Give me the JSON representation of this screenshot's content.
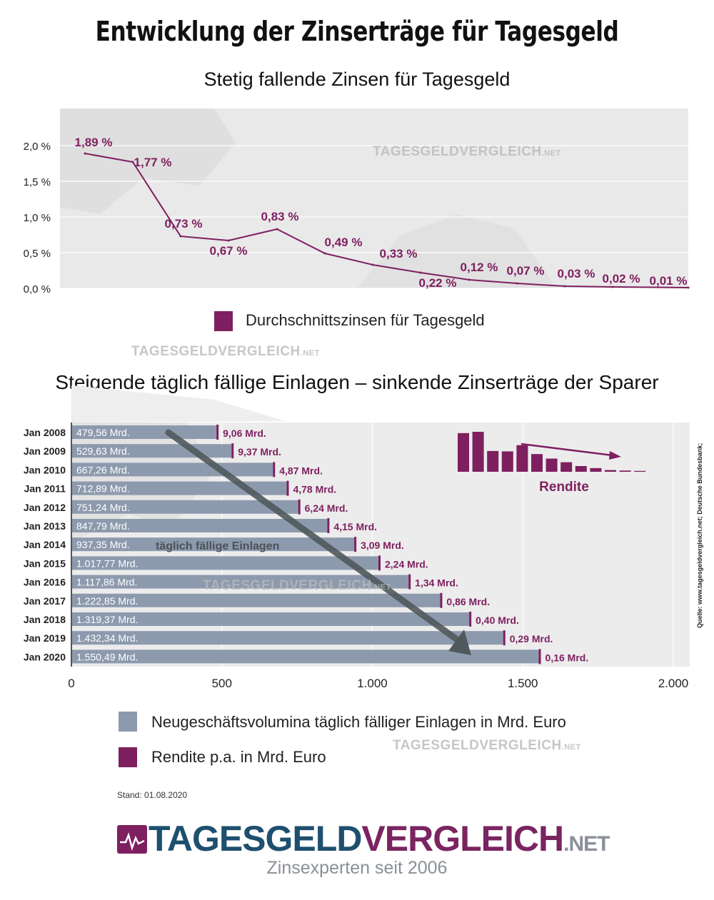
{
  "header": {
    "title": "Entwicklung der Zinserträge für Tagesgeld"
  },
  "chart_data": [
    {
      "type": "line",
      "title": "Stetig fallende Zinsen für Tagesgeld",
      "xlabel": "",
      "ylabel": "",
      "ylim": [
        0,
        2.4
      ],
      "yticks": [
        "0,0 %",
        "0,5 %",
        "1,0 %",
        "1,5 %",
        "2,0 %"
      ],
      "ytick_values": [
        0,
        0.5,
        1.0,
        1.5,
        2.0
      ],
      "grid": true,
      "legend_position": "bottom",
      "series": [
        {
          "name": "Durchschnittszinsen für Tagesgeld",
          "color": "#7e1f5f",
          "values": [
            1.89,
            1.77,
            0.73,
            0.67,
            0.83,
            0.49,
            0.33,
            0.22,
            0.12,
            0.07,
            0.03,
            0.02,
            0.01
          ],
          "labels": [
            "1,89 %",
            "1,77 %",
            "0,73 %",
            "0,67 %",
            "0,83 %",
            "0,49 %",
            "0,33 %",
            "0,22 %",
            "0,12 %",
            "0,07 %",
            "0,03 %",
            "0,02 %",
            "0,01 %"
          ]
        }
      ]
    },
    {
      "type": "bar",
      "orientation": "horizontal",
      "title": "Steigende täglich fällige Einlagen – sinkende Zinserträge der Sparer",
      "xlabel": "",
      "ylabel": "",
      "xlim": [
        0,
        2000
      ],
      "xticks": [
        "0",
        "500",
        "1.000",
        "1.500",
        "2.000"
      ],
      "xtick_values": [
        0,
        500,
        1000,
        1500,
        2000
      ],
      "grid": true,
      "legend_position": "bottom",
      "annotation": "täglich fällige Einlagen",
      "inset_label": "Rendite",
      "categories": [
        "Jan 2008",
        "Jan 2009",
        "Jan 2010",
        "Jan 2011",
        "Jan 2012",
        "Jan 2013",
        "Jan 2014",
        "Jan 2015",
        "Jan 2016",
        "Jan 2017",
        "Jan 2018",
        "Jan 2019",
        "Jan 2020"
      ],
      "series": [
        {
          "name": "Neugeschäftsvolumina täglich fälliger Einlagen in Mrd. Euro",
          "color": "#8d9aae",
          "values": [
            479.56,
            529.63,
            667.26,
            712.89,
            751.24,
            847.79,
            937.35,
            1017.77,
            1117.86,
            1222.85,
            1319.37,
            1432.34,
            1550.49
          ],
          "labels": [
            "479,56 Mrd.",
            "529,63 Mrd.",
            "667,26 Mrd.",
            "712,89 Mrd.",
            "751,24 Mrd.",
            "847,79 Mrd.",
            "937,35 Mrd.",
            "1.017,77 Mrd.",
            "1.117,86 Mrd.",
            "1.222,85 Mrd.",
            "1.319,37 Mrd.",
            "1.432,34 Mrd.",
            "1.550,49 Mrd."
          ]
        },
        {
          "name": "Rendite p.a. in Mrd. Euro",
          "color": "#7e1f5f",
          "values": [
            9.06,
            9.37,
            4.87,
            4.78,
            6.24,
            4.15,
            3.09,
            2.24,
            1.34,
            0.86,
            0.4,
            0.29,
            0.16
          ],
          "labels": [
            "9,06 Mrd.",
            "9,37 Mrd.",
            "4,87 Mrd.",
            "4,78 Mrd.",
            "6,24 Mrd.",
            "4,15 Mrd.",
            "3,09 Mrd.",
            "2,24 Mrd.",
            "1,34 Mrd.",
            "0,86 Mrd.",
            "0,40 Mrd.",
            "0,29 Mrd.",
            "0,16 Mrd."
          ]
        }
      ]
    }
  ],
  "footer": {
    "stand": "Stand: 01.08.2020",
    "source": "Quelle: www.tagesgeldvergleich.net; Deutsche Bundesbank;",
    "logo_part1": "TAGESGELD",
    "logo_part2": "VERGLEICH",
    "logo_part3": ".NET",
    "tagline": "Zinsexperten seit 2006"
  },
  "watermark": {
    "main": "TAGESGELDVERGLEICH",
    "suffix": ".NET"
  },
  "colors": {
    "accent": "#7e1f5f",
    "bar": "#8d9aae",
    "logo_blue": "#1e4f6e"
  }
}
